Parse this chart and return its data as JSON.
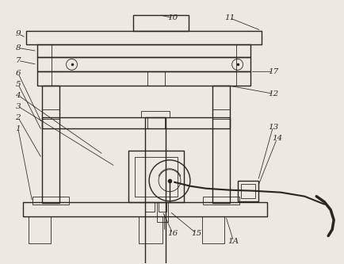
{
  "bg_color": "#ede9e0",
  "line_color": "#2a2520",
  "lw": 1.0,
  "tlw": 0.6,
  "fig_width": 4.34,
  "fig_height": 3.33,
  "dpi": 100
}
